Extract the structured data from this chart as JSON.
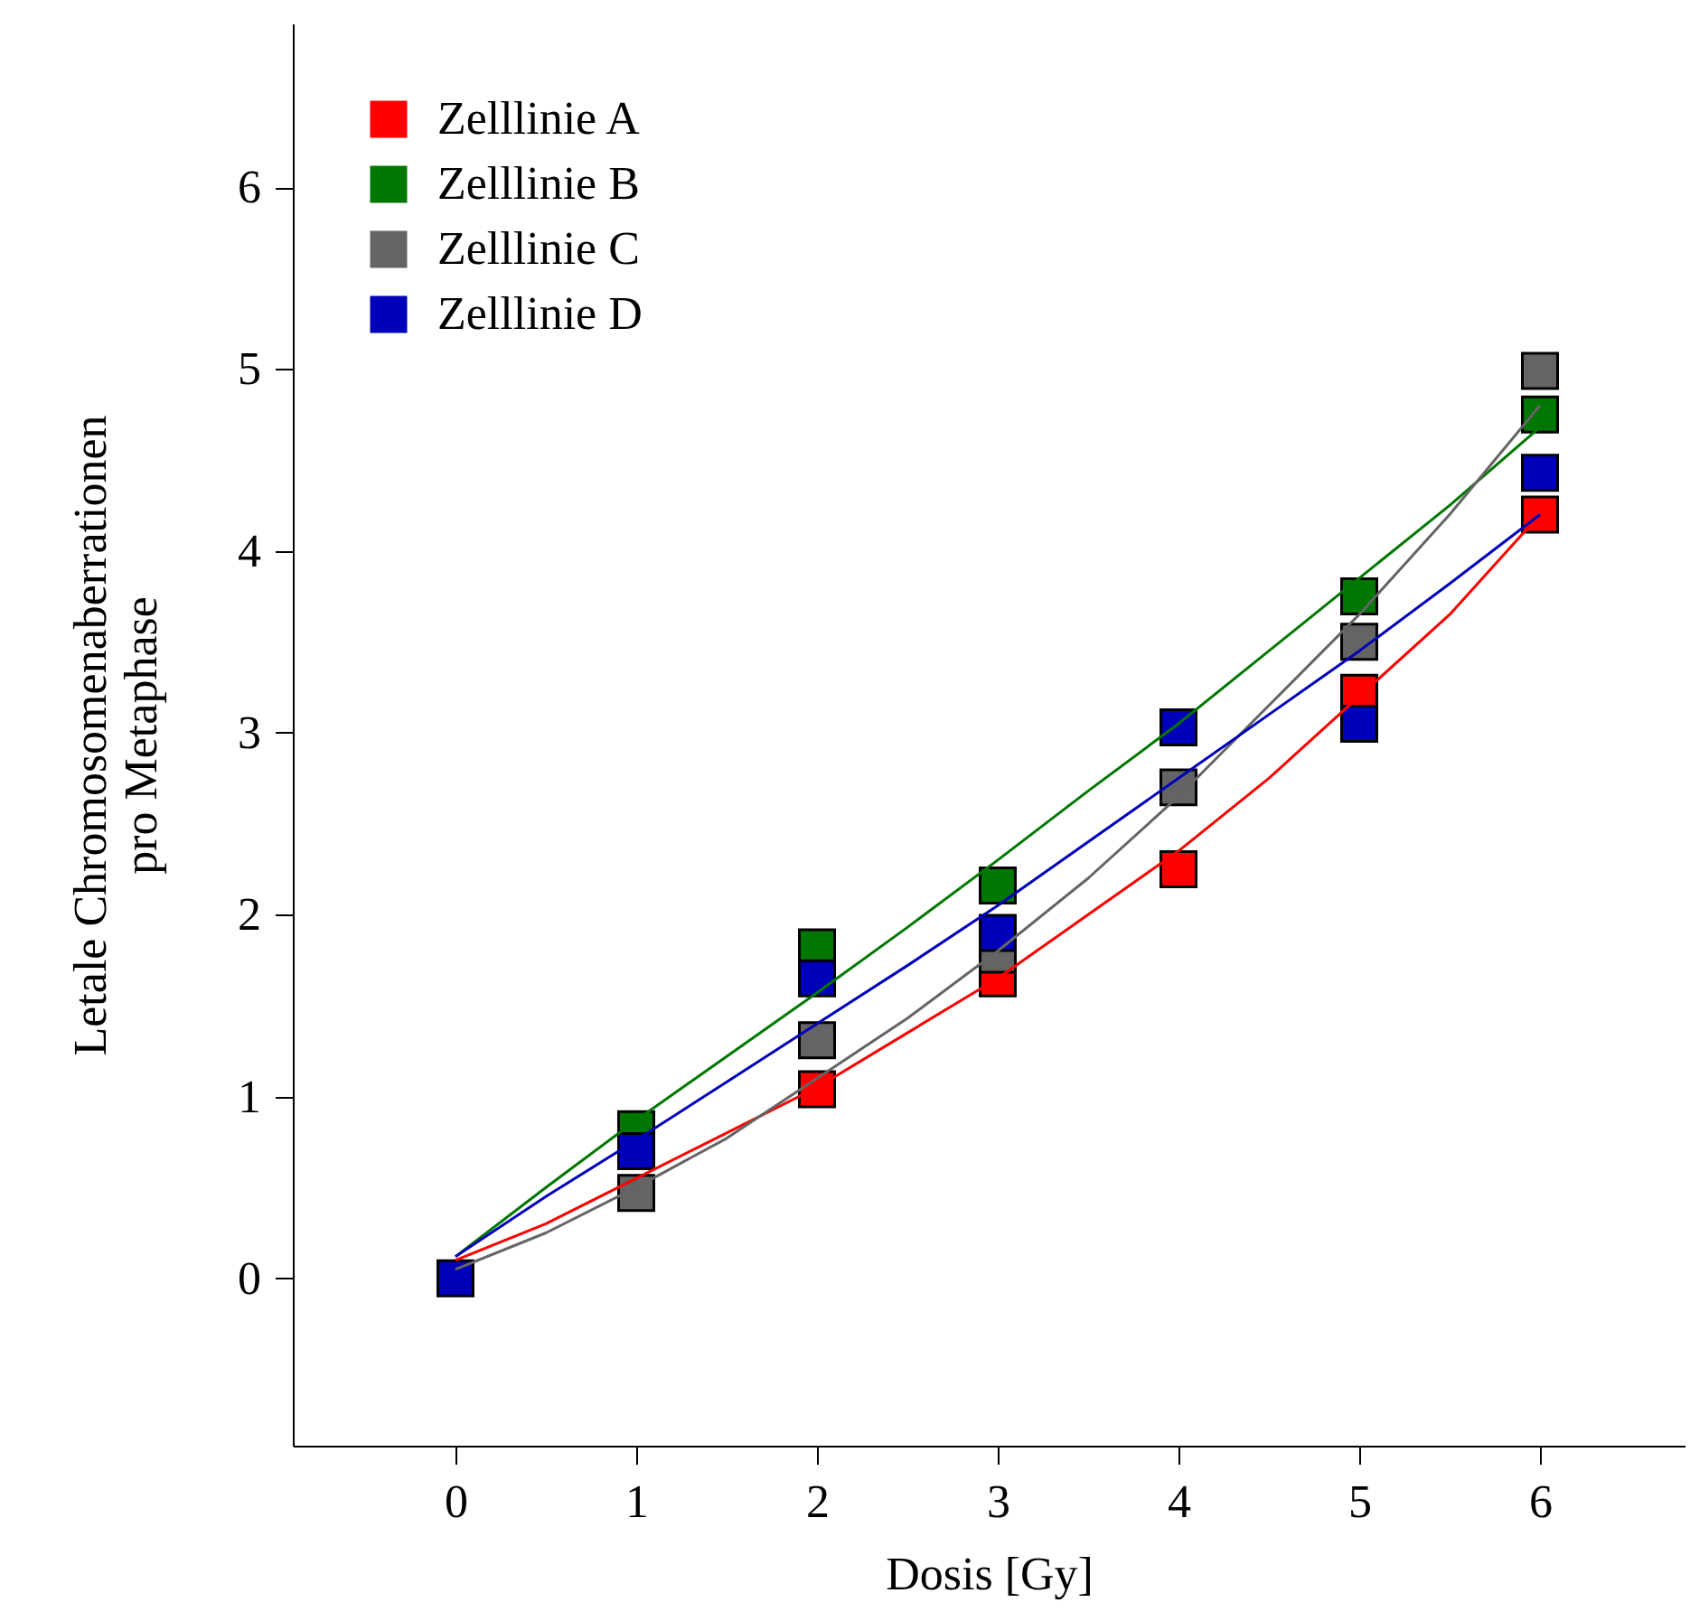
{
  "chart_data": {
    "type": "scatter",
    "xlabel": "Dosis [Gy]",
    "ylabel": "Letale Chromosomenaberrationen\npro Metaphase",
    "x": [
      0,
      1,
      2,
      3,
      4,
      5,
      6
    ],
    "series": [
      {
        "name": "Zelllinie A",
        "marker": "square",
        "color": "#ff0000",
        "values": [
          null,
          null,
          1.04,
          1.65,
          2.25,
          3.22,
          4.2
        ]
      },
      {
        "name": "Zelllinie B",
        "marker": "square",
        "color": "#007700",
        "values": [
          null,
          0.82,
          1.82,
          2.16,
          null,
          3.75,
          4.75
        ]
      },
      {
        "name": "Zelllinie C",
        "marker": "square",
        "color": "#646464",
        "values": [
          null,
          0.47,
          1.31,
          1.78,
          2.7,
          3.5,
          4.99
        ]
      },
      {
        "name": "Zelllinie D",
        "marker": "square",
        "color": "#0000bb",
        "values": [
          0,
          0.7,
          1.65,
          1.9,
          3.03,
          3.05,
          4.43
        ]
      },
      {
        "type": "line",
        "marker": "none",
        "color": "#ff0000",
        "x": [
          0,
          0.5,
          1,
          1.5,
          2,
          2.5,
          3,
          3.5,
          4,
          4.5,
          5,
          5.5,
          6
        ],
        "values": [
          0.1,
          0.3,
          0.55,
          0.8,
          1.05,
          1.35,
          1.65,
          2.0,
          2.35,
          2.75,
          3.2,
          3.65,
          4.2
        ]
      },
      {
        "type": "line",
        "marker": "none",
        "color": "#007700",
        "x": [
          0,
          0.5,
          1,
          1.5,
          2,
          2.5,
          3,
          3.5,
          4,
          4.5,
          5,
          5.5,
          6
        ],
        "values": [
          0.12,
          0.5,
          0.87,
          1.22,
          1.57,
          1.93,
          2.3,
          2.68,
          3.05,
          3.45,
          3.85,
          4.25,
          4.68
        ]
      },
      {
        "type": "line",
        "marker": "none",
        "color": "#646464",
        "x": [
          0,
          0.5,
          1,
          1.5,
          2,
          2.5,
          3,
          3.5,
          4,
          4.5,
          5,
          5.5,
          6
        ],
        "values": [
          0.05,
          0.25,
          0.5,
          0.77,
          1.1,
          1.43,
          1.8,
          2.2,
          2.65,
          3.15,
          3.65,
          4.2,
          4.8
        ]
      },
      {
        "type": "line",
        "marker": "none",
        "color": "#0000bb",
        "x": [
          0,
          0.5,
          1,
          1.5,
          2,
          2.5,
          3,
          3.5,
          4,
          4.5,
          5,
          5.5,
          6
        ],
        "values": [
          0.12,
          0.45,
          0.76,
          1.08,
          1.4,
          1.72,
          2.05,
          2.4,
          2.75,
          3.1,
          3.45,
          3.82,
          4.2
        ]
      }
    ],
    "xlim": [
      -0.9,
      6.8
    ],
    "ylim": [
      -0.92,
      6.9
    ],
    "xticks": [
      0,
      1,
      2,
      3,
      4,
      5,
      6
    ],
    "yticks": [
      0,
      1,
      2,
      3,
      4,
      5,
      6
    ],
    "grid": false,
    "legend": "top left"
  }
}
